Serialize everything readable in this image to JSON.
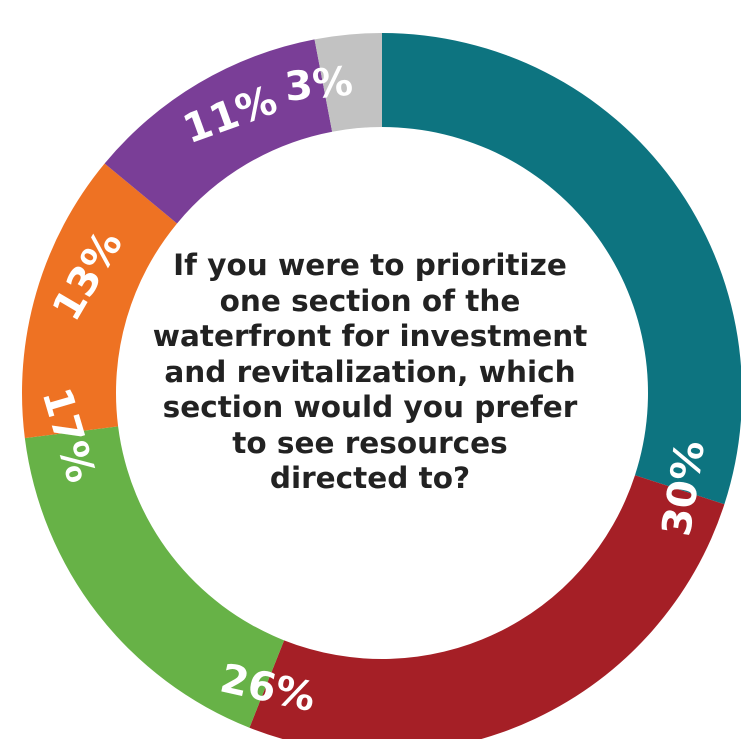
{
  "chart_data": {
    "type": "pie",
    "donut": true,
    "title": "If you were to prioritize\none section of the\nwaterfront for investment\nand revitalization, which\nsection would you prefer\nto see resources\ndirected to?",
    "legend": "none",
    "slices": [
      {
        "label": "30%",
        "value": 30,
        "color": "#0d7480"
      },
      {
        "label": "26%",
        "value": 26,
        "color": "#a51f26"
      },
      {
        "label": "17%",
        "value": 17,
        "color": "#67b247"
      },
      {
        "label": "13%",
        "value": 13,
        "color": "#ee7223"
      },
      {
        "label": "11%",
        "value": 11,
        "color": "#7a3e97"
      },
      {
        "label": "3%",
        "value": 3,
        "color": "#c2c2c2"
      }
    ]
  }
}
